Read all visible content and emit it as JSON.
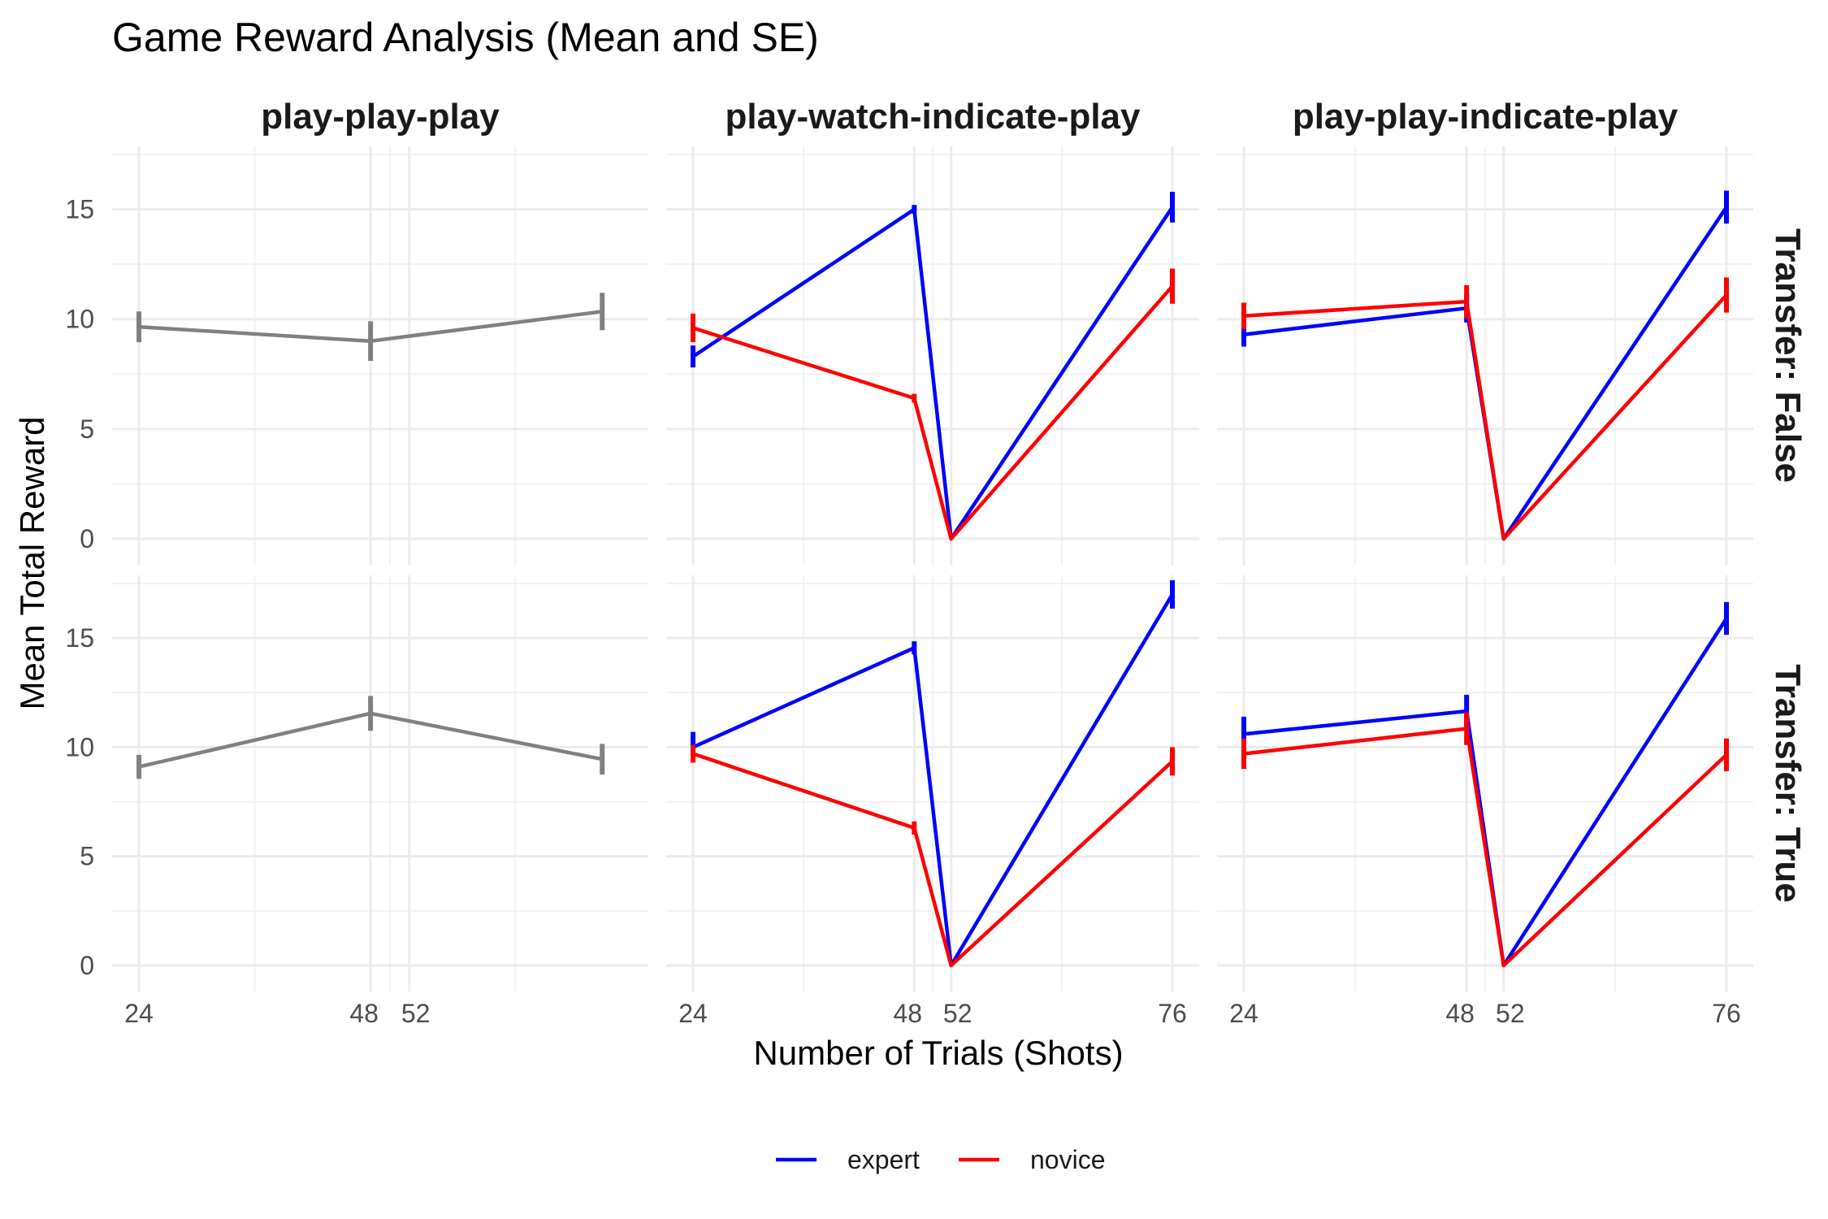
{
  "chart_data": {
    "type": "line",
    "title": "Game Reward Analysis (Mean and SE)",
    "xlabel": "Number of Trials (Shots)",
    "ylabel": "Mean Total Reward",
    "ylim": [
      0,
      17.5
    ],
    "y_ticks": [
      0,
      5,
      10,
      15
    ],
    "grid": true,
    "legend_position": "bottom",
    "legend": [
      {
        "name": "expert",
        "color": "#0000ff"
      },
      {
        "name": "novice",
        "color": "#ff0000"
      }
    ],
    "default_color": "#808080",
    "facet_cols": [
      "play-play-play",
      "play-watch-indicate-play",
      "play-play-indicate-play"
    ],
    "facet_rows": [
      "Transfer: False",
      "Transfer: True"
    ],
    "facet_x": [
      {
        "xlim": [
          24,
          74
        ],
        "x_ticks": [
          24,
          48,
          52
        ]
      },
      {
        "xlim": [
          24,
          76
        ],
        "x_ticks": [
          24,
          48,
          52,
          76
        ]
      },
      {
        "xlim": [
          24,
          76
        ],
        "x_ticks": [
          24,
          48,
          52,
          76
        ]
      }
    ],
    "panels": [
      {
        "row": 0,
        "col": 0,
        "series": [
          {
            "name": "",
            "color": "#808080",
            "x": [
              24,
              48,
              72
            ],
            "y": [
              9.65,
              9.0,
              10.35
            ],
            "se": [
              0.7,
              0.9,
              0.85
            ]
          }
        ]
      },
      {
        "row": 0,
        "col": 1,
        "series": [
          {
            "name": "expert",
            "color": "#0000ff",
            "x": [
              24,
              48,
              52,
              76
            ],
            "y": [
              8.3,
              15.0,
              0.0,
              15.1
            ],
            "se": [
              0.5,
              0.2,
              0.0,
              0.7
            ]
          },
          {
            "name": "novice",
            "color": "#ff0000",
            "x": [
              24,
              48,
              52,
              76
            ],
            "y": [
              9.6,
              6.4,
              0.0,
              11.5
            ],
            "se": [
              0.65,
              0.2,
              0.0,
              0.8
            ]
          }
        ]
      },
      {
        "row": 0,
        "col": 2,
        "series": [
          {
            "name": "expert",
            "color": "#0000ff",
            "x": [
              24,
              48,
              52,
              76
            ],
            "y": [
              9.3,
              10.5,
              0.0,
              15.1
            ],
            "se": [
              0.55,
              0.65,
              0.0,
              0.75
            ]
          },
          {
            "name": "novice",
            "color": "#ff0000",
            "x": [
              24,
              48,
              52,
              76
            ],
            "y": [
              10.15,
              10.8,
              0.0,
              11.1
            ],
            "se": [
              0.6,
              0.75,
              0.0,
              0.8
            ]
          }
        ]
      },
      {
        "row": 1,
        "col": 0,
        "series": [
          {
            "name": "",
            "color": "#808080",
            "x": [
              24,
              48,
              72
            ],
            "y": [
              9.1,
              11.55,
              9.45
            ],
            "se": [
              0.55,
              0.8,
              0.7
            ]
          }
        ]
      },
      {
        "row": 1,
        "col": 1,
        "series": [
          {
            "name": "expert",
            "color": "#0000ff",
            "x": [
              24,
              48,
              52,
              76
            ],
            "y": [
              10.0,
              14.55,
              0.0,
              17.0
            ],
            "se": [
              0.7,
              0.3,
              0.0,
              0.65
            ]
          },
          {
            "name": "novice",
            "color": "#ff0000",
            "x": [
              24,
              48,
              52,
              76
            ],
            "y": [
              9.7,
              6.3,
              0.0,
              9.35
            ],
            "se": [
              0.4,
              0.3,
              0.0,
              0.65
            ]
          }
        ]
      },
      {
        "row": 1,
        "col": 2,
        "series": [
          {
            "name": "expert",
            "color": "#0000ff",
            "x": [
              24,
              48,
              52,
              76
            ],
            "y": [
              10.6,
              11.65,
              0.0,
              15.9
            ],
            "se": [
              0.8,
              0.75,
              0.0,
              0.75
            ]
          },
          {
            "name": "novice",
            "color": "#ff0000",
            "x": [
              24,
              48,
              52,
              76
            ],
            "y": [
              9.7,
              10.85,
              0.0,
              9.65
            ],
            "se": [
              0.7,
              0.75,
              0.0,
              0.75
            ]
          }
        ]
      }
    ]
  }
}
